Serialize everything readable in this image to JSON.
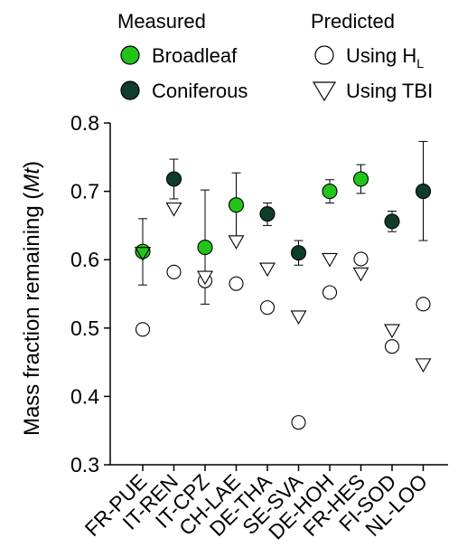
{
  "chart_data": {
    "type": "scatter",
    "ylabel": "Mass fraction remaining",
    "ylabel_italic": "Mt",
    "ylim": [
      0.3,
      0.8
    ],
    "yticks": [
      "0.3",
      "0.4",
      "0.5",
      "0.6",
      "0.7",
      "0.8"
    ],
    "categories": [
      "FR-PUE",
      "IT-REN",
      "IT-CPZ",
      "CH-LAE",
      "DE-THA",
      "SE-SVA",
      "DE-HOH",
      "FR-HES",
      "FI-SOD",
      "NL-LOO"
    ],
    "measured": [
      {
        "site": "FR-PUE",
        "type": "Broadleaf",
        "value": 0.612,
        "err_low": 0.563,
        "err_high": 0.66
      },
      {
        "site": "IT-REN",
        "type": "Coniferous",
        "value": 0.718,
        "err_low": 0.689,
        "err_high": 0.747
      },
      {
        "site": "IT-CPZ",
        "type": "Broadleaf",
        "value": 0.618,
        "err_low": 0.535,
        "err_high": 0.702
      },
      {
        "site": "CH-LAE",
        "type": "Broadleaf",
        "value": 0.68,
        "err_low": 0.633,
        "err_high": 0.727
      },
      {
        "site": "DE-THA",
        "type": "Coniferous",
        "value": 0.667,
        "err_low": 0.65,
        "err_high": 0.683
      },
      {
        "site": "SE-SVA",
        "type": "Coniferous",
        "value": 0.61,
        "err_low": 0.592,
        "err_high": 0.628
      },
      {
        "site": "DE-HOH",
        "type": "Broadleaf",
        "value": 0.7,
        "err_low": 0.683,
        "err_high": 0.717
      },
      {
        "site": "FR-HES",
        "type": "Broadleaf",
        "value": 0.718,
        "err_low": 0.697,
        "err_high": 0.739
      },
      {
        "site": "FI-SOD",
        "type": "Coniferous",
        "value": 0.656,
        "err_low": 0.641,
        "err_high": 0.671
      },
      {
        "site": "NL-LOO",
        "type": "Coniferous",
        "value": 0.7,
        "err_low": 0.628,
        "err_high": 0.773
      }
    ],
    "predicted_hl": [
      0.498,
      0.582,
      0.569,
      0.565,
      0.53,
      0.362,
      0.552,
      0.601,
      0.473,
      0.535
    ],
    "predicted_tbi": [
      0.61,
      0.675,
      0.575,
      0.627,
      0.587,
      0.517,
      0.601,
      0.58,
      0.497,
      0.447
    ],
    "legend": {
      "measured_title": "Measured",
      "predicted_title": "Predicted",
      "broadleaf": "Broadleaf",
      "coniferous": "Coniferous",
      "using_hl": "Using H",
      "using_hl_sub": "L",
      "using_tbi": "Using TBI"
    },
    "colors": {
      "broadleaf": "#22c41a",
      "coniferous": "#0e3d2a",
      "predicted_fill": "#ffffff",
      "stroke": "#000000"
    }
  }
}
